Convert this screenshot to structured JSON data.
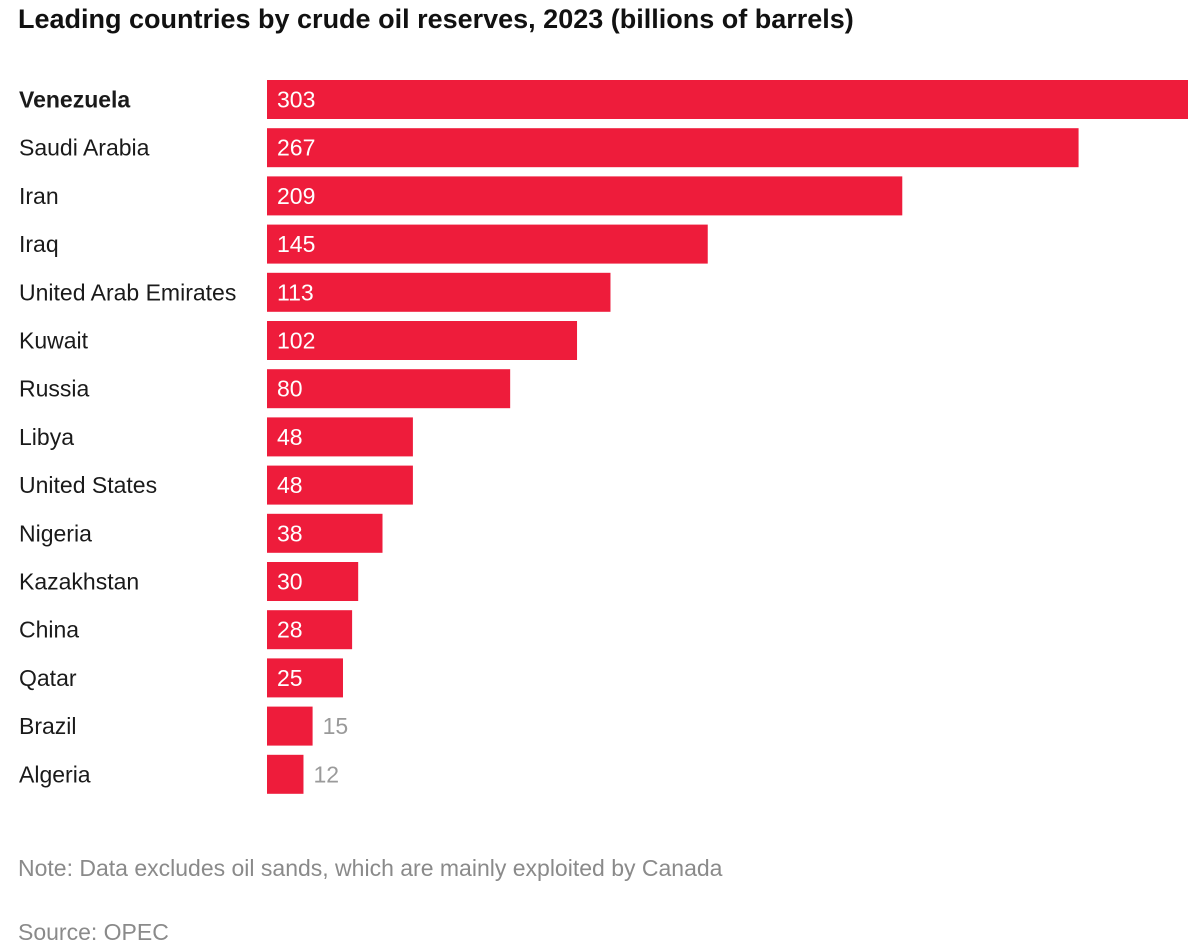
{
  "chart_data": {
    "type": "bar",
    "orientation": "horizontal",
    "title": "Leading countries by crude oil reserves, 2023 (billions of barrels)",
    "categories": [
      "Venezuela",
      "Saudi Arabia",
      "Iran",
      "Iraq",
      "United Arab Emirates",
      "Kuwait",
      "Russia",
      "Libya",
      "United States",
      "Nigeria",
      "Kazakhstan",
      "China",
      "Qatar",
      "Brazil",
      "Algeria"
    ],
    "values": [
      303,
      267,
      209,
      145,
      113,
      102,
      80,
      48,
      48,
      38,
      30,
      28,
      25,
      15,
      12
    ],
    "value_labels": [
      "303",
      "267",
      "209",
      "145",
      "113",
      "102",
      "80",
      "48",
      "48",
      "38",
      "30",
      "28",
      "25",
      "15",
      "12"
    ],
    "highlight_category": "Venezuela",
    "xlim": [
      0,
      303
    ],
    "grid": false,
    "legend": "none",
    "bar_color": "#ee1c3b"
  },
  "note": "Note: Data excludes oil sands, which are mainly exploited by Canada",
  "source": "Source: OPEC"
}
